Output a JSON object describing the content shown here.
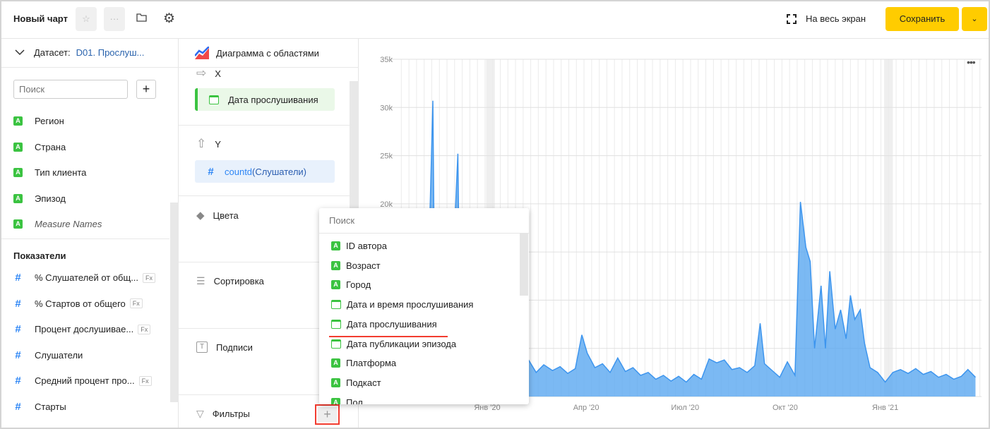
{
  "header": {
    "title": "Новый чарт",
    "fullscreen_label": "На весь экран",
    "save_label": "Сохранить"
  },
  "dataset": {
    "label": "Датасет:",
    "name": "D01. Прослуш...",
    "search_placeholder": "Поиск",
    "dimensions": [
      {
        "label": "Регион",
        "type": "string"
      },
      {
        "label": "Страна",
        "type": "string"
      },
      {
        "label": "Тип клиента",
        "type": "string"
      },
      {
        "label": "Эпизод",
        "type": "string"
      },
      {
        "label": "Measure Names",
        "type": "string"
      }
    ],
    "measures_title": "Показатели",
    "measures": [
      {
        "label": "% Слушателей от общ...",
        "formula": true
      },
      {
        "label": "% Стартов от общего",
        "formula": true
      },
      {
        "label": "Процент дослушивае...",
        "formula": true
      },
      {
        "label": "Слушатели",
        "formula": false
      },
      {
        "label": "Средний процент про...",
        "formula": true
      },
      {
        "label": "Старты",
        "formula": false
      }
    ]
  },
  "visualization": {
    "type_label": "Диаграмма с областями",
    "x_label": "X",
    "x_field": "Дата прослушивания",
    "y_label": "Y",
    "y_func": "countd",
    "y_field": "(Слушатели)",
    "colors_label": "Цвета",
    "sort_label": "Сортировка",
    "labels_label": "Подписи",
    "filters_label": "Фильтры",
    "filters_add": "+"
  },
  "dropdown": {
    "search_placeholder": "Поиск",
    "items": [
      {
        "label": "ID автора",
        "type": "string"
      },
      {
        "label": "Возраст",
        "type": "string"
      },
      {
        "label": "Город",
        "type": "string"
      },
      {
        "label": "Дата и время прослушивания",
        "type": "date"
      },
      {
        "label": "Дата прослушивания",
        "type": "date",
        "highlighted": true
      },
      {
        "label": "Дата публикации эпизода",
        "type": "date"
      },
      {
        "label": "Платформа",
        "type": "string"
      },
      {
        "label": "Подкаст",
        "type": "string"
      },
      {
        "label": "Пол",
        "type": "string"
      }
    ]
  },
  "colors": {
    "accent": "#ffcc00",
    "area": "#5aa7f0",
    "link": "#2a63ad",
    "highlight": "#f23c30"
  },
  "chart_data": {
    "type": "area",
    "ylim": [
      0,
      35000
    ],
    "yticks": [
      "35k",
      "30k",
      "25k",
      "20k"
    ],
    "xticks": [
      "Янв '20",
      "Апр '20",
      "Июл '20",
      "Окт '20",
      "Янв '21"
    ],
    "grid": true,
    "points": [
      [
        "2019-10-16",
        3000
      ],
      [
        "2019-10-23",
        4500
      ],
      [
        "2019-10-30",
        3800
      ],
      [
        "2019-11-06",
        4200
      ],
      [
        "2019-11-12",
        30700
      ],
      [
        "2019-11-14",
        5000
      ],
      [
        "2019-11-20",
        4000
      ],
      [
        "2019-11-27",
        4500
      ],
      [
        "2019-12-05",
        25200
      ],
      [
        "2019-12-07",
        5000
      ],
      [
        "2019-12-14",
        4200
      ],
      [
        "2019-12-21",
        3500
      ],
      [
        "2019-12-28",
        3000
      ],
      [
        "2020-01-04",
        3200
      ],
      [
        "2020-01-11",
        3900
      ],
      [
        "2020-01-18",
        3500
      ],
      [
        "2020-01-25",
        4200
      ],
      [
        "2020-02-01",
        3000
      ],
      [
        "2020-02-08",
        3800
      ],
      [
        "2020-02-15",
        2500
      ],
      [
        "2020-02-22",
        3300
      ],
      [
        "2020-03-01",
        2700
      ],
      [
        "2020-03-08",
        3100
      ],
      [
        "2020-03-15",
        2400
      ],
      [
        "2020-03-22",
        2900
      ],
      [
        "2020-03-28",
        6400
      ],
      [
        "2020-04-02",
        4500
      ],
      [
        "2020-04-09",
        3000
      ],
      [
        "2020-04-16",
        3400
      ],
      [
        "2020-04-23",
        2500
      ],
      [
        "2020-04-30",
        4000
      ],
      [
        "2020-05-07",
        2600
      ],
      [
        "2020-05-14",
        3000
      ],
      [
        "2020-05-21",
        2200
      ],
      [
        "2020-05-28",
        2500
      ],
      [
        "2020-06-04",
        1800
      ],
      [
        "2020-06-11",
        2200
      ],
      [
        "2020-06-18",
        1600
      ],
      [
        "2020-06-25",
        2100
      ],
      [
        "2020-07-02",
        1500
      ],
      [
        "2020-07-09",
        2300
      ],
      [
        "2020-07-16",
        1800
      ],
      [
        "2020-07-23",
        3900
      ],
      [
        "2020-07-30",
        3500
      ],
      [
        "2020-08-06",
        3800
      ],
      [
        "2020-08-13",
        2800
      ],
      [
        "2020-08-20",
        3000
      ],
      [
        "2020-08-27",
        2500
      ],
      [
        "2020-09-03",
        3200
      ],
      [
        "2020-09-08",
        7600
      ],
      [
        "2020-09-12",
        3400
      ],
      [
        "2020-09-19",
        2700
      ],
      [
        "2020-09-26",
        2000
      ],
      [
        "2020-10-03",
        3600
      ],
      [
        "2020-10-10",
        2200
      ],
      [
        "2020-10-15",
        20200
      ],
      [
        "2020-10-20",
        15500
      ],
      [
        "2020-10-24",
        14000
      ],
      [
        "2020-10-28",
        5000
      ],
      [
        "2020-11-03",
        11500
      ],
      [
        "2020-11-07",
        5000
      ],
      [
        "2020-11-11",
        13000
      ],
      [
        "2020-11-16",
        7000
      ],
      [
        "2020-11-21",
        9000
      ],
      [
        "2020-11-26",
        6000
      ],
      [
        "2020-11-30",
        10500
      ],
      [
        "2020-12-04",
        8000
      ],
      [
        "2020-12-09",
        9000
      ],
      [
        "2020-12-13",
        5500
      ],
      [
        "2020-12-18",
        3000
      ],
      [
        "2020-12-25",
        2500
      ],
      [
        "2021-01-01",
        1500
      ],
      [
        "2021-01-08",
        2500
      ],
      [
        "2021-01-15",
        2800
      ],
      [
        "2021-01-22",
        2400
      ],
      [
        "2021-01-29",
        2900
      ],
      [
        "2021-02-05",
        2300
      ],
      [
        "2021-02-12",
        2600
      ],
      [
        "2021-02-19",
        2000
      ],
      [
        "2021-02-26",
        2300
      ],
      [
        "2021-03-05",
        1800
      ],
      [
        "2021-03-12",
        2100
      ],
      [
        "2021-03-18",
        2800
      ],
      [
        "2021-03-25",
        2000
      ]
    ]
  }
}
